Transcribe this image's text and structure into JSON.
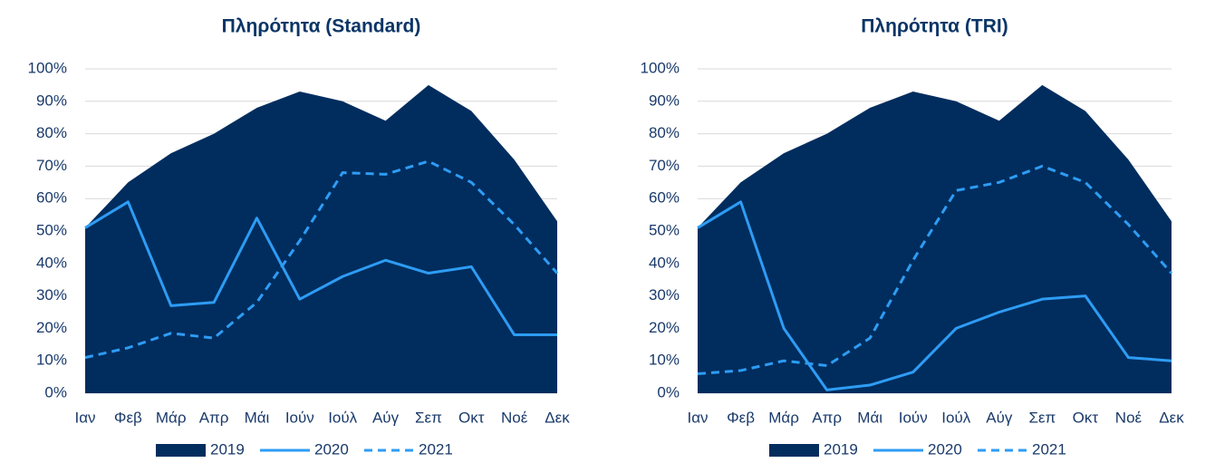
{
  "chart_data": [
    {
      "type": "line",
      "title": "Πληρότητα (Standard)",
      "categories": [
        "Ιαν",
        "Φεβ",
        "Μάρ",
        "Απρ",
        "Μάι",
        "Ιούν",
        "Ιούλ",
        "Αύγ",
        "Σεπ",
        "Οκτ",
        "Νοέ",
        "Δεκ"
      ],
      "ylim": [
        0,
        100
      ],
      "yticks": [
        {
          "value": 0,
          "label": "0%"
        },
        {
          "value": 10,
          "label": "10%"
        },
        {
          "value": 20,
          "label": "20%"
        },
        {
          "value": 30,
          "label": "30%"
        },
        {
          "value": 40,
          "label": "40%"
        },
        {
          "value": 50,
          "label": "50%"
        },
        {
          "value": 60,
          "label": "60%"
        },
        {
          "value": 70,
          "label": "70%"
        },
        {
          "value": 80,
          "label": "80%"
        },
        {
          "value": 90,
          "label": "90%"
        },
        {
          "value": 100,
          "label": "100%"
        }
      ],
      "grid": true,
      "legend": "bottom",
      "series": [
        {
          "name": "2019",
          "type": "area",
          "color": "#002d5e",
          "values": [
            51,
            65,
            74,
            80,
            88,
            93,
            90,
            84,
            95,
            87,
            72,
            53
          ]
        },
        {
          "name": "2020",
          "type": "line",
          "color": "#2e9cf4",
          "values": [
            51,
            59,
            27,
            28,
            54,
            29,
            36,
            41,
            37,
            39,
            18,
            18
          ]
        },
        {
          "name": "2021",
          "type": "line",
          "dashed": true,
          "color": "#2e9cf4",
          "values": [
            11,
            14,
            18.5,
            17,
            28,
            47,
            68,
            67.5,
            71.5,
            65,
            52,
            37
          ]
        }
      ]
    },
    {
      "type": "line",
      "title": "Πληρότητα (TRI)",
      "categories": [
        "Ιαν",
        "Φεβ",
        "Μάρ",
        "Απρ",
        "Μάι",
        "Ιούν",
        "Ιούλ",
        "Αύγ",
        "Σεπ",
        "Οκτ",
        "Νοέ",
        "Δεκ"
      ],
      "ylim": [
        0,
        100
      ],
      "yticks": [
        {
          "value": 0,
          "label": "0%"
        },
        {
          "value": 10,
          "label": "10%"
        },
        {
          "value": 20,
          "label": "20%"
        },
        {
          "value": 30,
          "label": "30%"
        },
        {
          "value": 40,
          "label": "40%"
        },
        {
          "value": 50,
          "label": "50%"
        },
        {
          "value": 60,
          "label": "60%"
        },
        {
          "value": 70,
          "label": "70%"
        },
        {
          "value": 80,
          "label": "80%"
        },
        {
          "value": 90,
          "label": "90%"
        },
        {
          "value": 100,
          "label": "100%"
        }
      ],
      "grid": true,
      "legend": "bottom",
      "series": [
        {
          "name": "2019",
          "type": "area",
          "color": "#002d5e",
          "values": [
            51,
            65,
            74,
            80,
            88,
            93,
            90,
            84,
            95,
            87,
            72,
            53
          ]
        },
        {
          "name": "2020",
          "type": "line",
          "color": "#2e9cf4",
          "values": [
            51,
            59,
            20,
            1,
            2.5,
            6.5,
            20,
            25,
            29,
            30,
            11,
            10
          ]
        },
        {
          "name": "2021",
          "type": "line",
          "dashed": true,
          "color": "#2e9cf4",
          "values": [
            6,
            7,
            10,
            8.5,
            17,
            41,
            62.5,
            65,
            70,
            65,
            52,
            37
          ]
        }
      ]
    }
  ]
}
